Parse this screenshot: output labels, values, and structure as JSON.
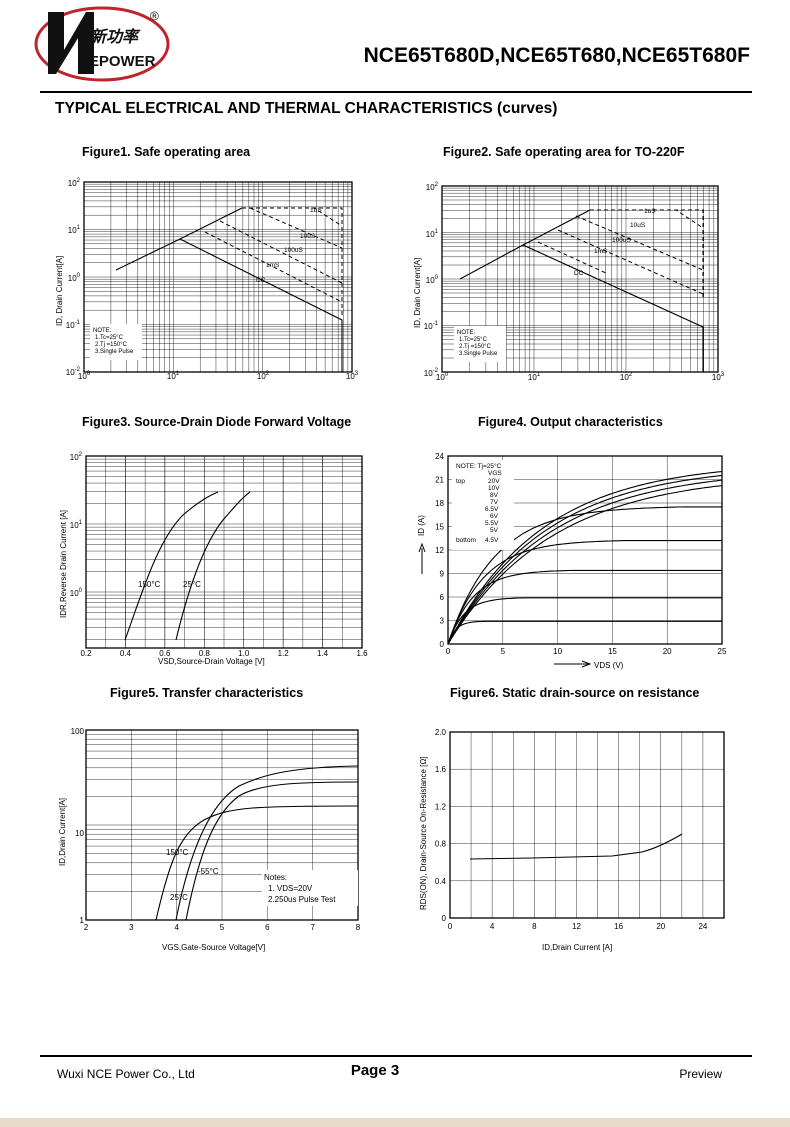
{
  "header": {
    "logo_cn": "新功率",
    "logo_en": "CEPOWER",
    "logo_reg": "®",
    "part_numbers": "NCE65T680D,NCE65T680,NCE65T680F"
  },
  "section_title": "TYPICAL ELECTRICAL AND THERMAL CHARACTERISTICS (curves)",
  "figures": {
    "fig1": {
      "title": "Figure1. Safe operating area",
      "ylabel": "ID, Drain Current[A]",
      "x_ticks": [
        "10^0",
        "10^1",
        "10^2",
        "10^3"
      ],
      "y_ticks": [
        "10^2",
        "10^1",
        "10^0",
        "10^-1",
        "10^-2"
      ],
      "curve_labels": [
        "1uS",
        "10uS",
        "100uS",
        "1mS",
        "DC"
      ],
      "note": [
        "NOTE:",
        "1.Tc=25°C",
        "2.Tj =150°C",
        "3.Single Pulse"
      ]
    },
    "fig2": {
      "title": "Figure2. Safe operating area for TO-220F",
      "ylabel": "ID, Drain Current[A]",
      "x_ticks": [
        "10^0",
        "10^1",
        "10^2",
        "10^3"
      ],
      "y_ticks": [
        "10^2",
        "10^1",
        "10^0",
        "10^-1",
        "10^-2"
      ],
      "curve_labels": [
        "1uS",
        "10uS",
        "100uS",
        "1mS",
        "DC"
      ],
      "note": [
        "NOTE:",
        "1.Tc=25°C",
        "2.Tj =150°C",
        "3.Single Pulse"
      ]
    },
    "fig3": {
      "title": "Figure3. Source-Drain Diode Forward Voltage",
      "ylabel": "IDR,Reverse Drain Current [A]",
      "xlabel": "VSD,Source-Drain Voltage [V]",
      "x_ticks": [
        "0.2",
        "0.4",
        "0.6",
        "0.8",
        "1.0",
        "1.2",
        "1.4",
        "1.6"
      ],
      "y_ticks": [
        "10^2",
        "10^1",
        "10^0"
      ],
      "curve_labels": [
        "150°C",
        "25°C"
      ]
    },
    "fig4": {
      "title": "Figure4. Output characteristics",
      "ylabel": "ID (A)",
      "xlabel": "VDS (V)",
      "x_ticks": [
        "0",
        "5",
        "10",
        "15",
        "20",
        "25"
      ],
      "y_ticks": [
        "24",
        "21",
        "18",
        "15",
        "12",
        "9",
        "6",
        "3",
        "0"
      ],
      "note_title": "NOTE:   Tj=25°C",
      "vgs_label": "VGS",
      "vgs_values": [
        "20V",
        "10V",
        "8V",
        "7V",
        "6.5V",
        "6V",
        "5.5V",
        "5V",
        "4.5V"
      ],
      "top_label": "top",
      "bottom_label": "bottom"
    },
    "fig5": {
      "title": "Figure5. Transfer characteristics",
      "ylabel": "ID,Drain Current[A]",
      "xlabel": "VGS,Gate-Source Voltage[V]",
      "x_ticks": [
        "2",
        "3",
        "4",
        "5",
        "6",
        "7",
        "8"
      ],
      "y_ticks": [
        "100",
        "10",
        "1"
      ],
      "curve_labels": [
        "150°C",
        "-55°C",
        "25°C"
      ],
      "notes": [
        "Notes:",
        "1. VDS=20V",
        "2.250us Pulse Test"
      ]
    },
    "fig6": {
      "title": "Figure6. Static drain-source on resistance",
      "ylabel": "RDS(ON), Drain-Source On-Resistance [Ω]",
      "xlabel": "ID,Drain Current [A]",
      "x_ticks": [
        "0",
        "4",
        "8",
        "12",
        "16",
        "20",
        "24"
      ],
      "y_ticks": [
        "2.0",
        "1.6",
        "1.2",
        "0.8",
        "0.4",
        "0"
      ]
    }
  },
  "footer": {
    "company": "Wuxi NCE Power Co., Ltd",
    "page": "Page  3",
    "status": "Preview"
  }
}
